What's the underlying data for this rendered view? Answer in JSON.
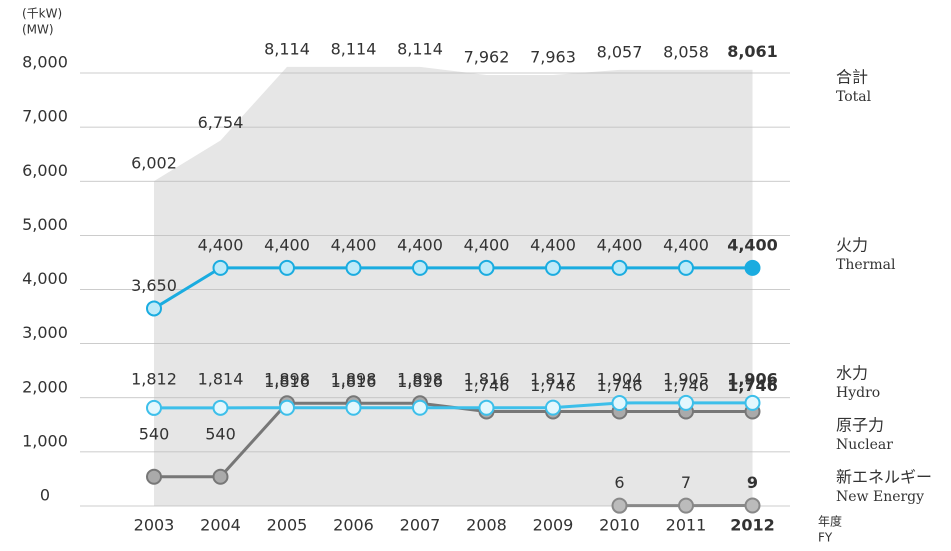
{
  "chart_data": {
    "type": "line",
    "y_axis_label": [
      "(千kW)",
      "(MW)"
    ],
    "x_axis_label": [
      "年度",
      "FY"
    ],
    "categories": [
      "2003",
      "2004",
      "2005",
      "2006",
      "2007",
      "2008",
      "2009",
      "2010",
      "2011",
      "2012"
    ],
    "ylim": [
      0,
      8000
    ],
    "yticks": [
      {
        "value": 0,
        "label": "0"
      },
      {
        "value": 1000,
        "label": "1,000"
      },
      {
        "value": 2000,
        "label": "2,000"
      },
      {
        "value": 3000,
        "label": "3,000"
      },
      {
        "value": 4000,
        "label": "4,000"
      },
      {
        "value": 5000,
        "label": "5,000"
      },
      {
        "value": 6000,
        "label": "6,000"
      },
      {
        "value": 7000,
        "label": "7,000"
      },
      {
        "value": 8000,
        "label": "8,000"
      }
    ],
    "grid": true,
    "series": [
      {
        "name": "合計",
        "name_en": "Total",
        "kind": "area",
        "color": "#e6e6e6",
        "label_color": "#222",
        "values": [
          6002,
          6754,
          8114,
          8114,
          8114,
          7962,
          7963,
          8057,
          8058,
          8061
        ],
        "value_labels": [
          "6,002",
          "6,754",
          "8,114",
          "8,114",
          "8,114",
          "7,962",
          "7,963",
          "8,057",
          "8,058",
          "8,061"
        ]
      },
      {
        "name": "火力",
        "name_en": "Thermal",
        "kind": "line",
        "color": "#1aace0",
        "label_color": "#1aace0",
        "values": [
          3650,
          4400,
          4400,
          4400,
          4400,
          4400,
          4400,
          4400,
          4400,
          4400
        ],
        "value_labels": [
          "3,650",
          "4,400",
          "4,400",
          "4,400",
          "4,400",
          "4,400",
          "4,400",
          "4,400",
          "4,400",
          "4,400"
        ]
      },
      {
        "name": "水力",
        "name_en": "Hydro",
        "kind": "line",
        "color": "#3dbfea",
        "label_color": "#3dbfea",
        "values": [
          1812,
          1814,
          1816,
          1816,
          1816,
          1816,
          1817,
          1904,
          1905,
          1906
        ],
        "value_labels": [
          "1,812",
          "1,814",
          "1,816",
          "1,816",
          "1,816",
          "1,816",
          "1,817",
          "1,904",
          "1,905",
          "1,906"
        ]
      },
      {
        "name": "原子力",
        "name_en": "Nuclear",
        "kind": "line",
        "color": "#777777",
        "label_color": "#555",
        "values": [
          540,
          540,
          1898,
          1898,
          1898,
          1746,
          1746,
          1746,
          1746,
          1746
        ],
        "value_labels": [
          "540",
          "540",
          "1,898",
          "1,898",
          "1,898",
          "1,746",
          "1,746",
          "1,746",
          "1,746",
          "1,746"
        ]
      },
      {
        "name": "新エネルギー",
        "name_en": "New Energy",
        "kind": "line",
        "color": "#888888",
        "label_color": "#555",
        "values": [
          null,
          null,
          null,
          null,
          null,
          null,
          null,
          6,
          7,
          9
        ],
        "value_labels": [
          null,
          null,
          null,
          null,
          null,
          null,
          null,
          "6",
          "7",
          "9"
        ]
      }
    ]
  }
}
